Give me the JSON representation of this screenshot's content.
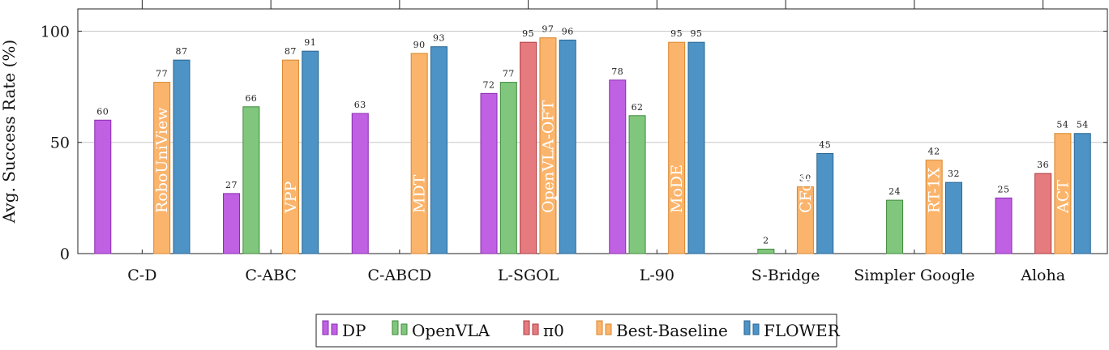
{
  "chart_data": {
    "type": "bar",
    "ylabel": "Avg. Success Rate (%)",
    "xlabel": "",
    "ylim": [
      0,
      110
    ],
    "yticks": [
      0,
      50,
      100
    ],
    "grid": true,
    "legend_position": "bottom-center",
    "categories": [
      "C-D",
      "C-ABC",
      "C-ABCD",
      "L-SGOL",
      "L-90",
      "S-Bridge",
      "Simpler Google",
      "Aloha"
    ],
    "series": [
      {
        "name": "DP",
        "color": "#c061e3",
        "stroke": "#8a2cb0",
        "values": [
          60,
          27,
          63,
          72,
          78,
          null,
          null,
          25
        ]
      },
      {
        "name": "OpenVLA",
        "color": "#80c77d",
        "stroke": "#3f8a3b",
        "values": [
          null,
          66,
          null,
          77,
          62,
          2,
          24,
          null
        ]
      },
      {
        "name": "π0",
        "color": "#e57b7f",
        "stroke": "#b03a40",
        "values": [
          null,
          null,
          null,
          95,
          null,
          null,
          null,
          36
        ]
      },
      {
        "name": "Best-Baseline",
        "color": "#fbb46b",
        "stroke": "#d9862d",
        "values": [
          77,
          87,
          90,
          97,
          95,
          30,
          42,
          54
        ]
      },
      {
        "name": "FLOWER",
        "color": "#4d93c6",
        "stroke": "#2a6591",
        "values": [
          87,
          91,
          93,
          96,
          95,
          45,
          32,
          54
        ]
      }
    ],
    "best_baseline_names": [
      "RoboUniView",
      "VPP",
      "MDT",
      "OpenVLA-OFT",
      "MoDE",
      "CForm",
      "RT-1X",
      "ACT"
    ]
  }
}
